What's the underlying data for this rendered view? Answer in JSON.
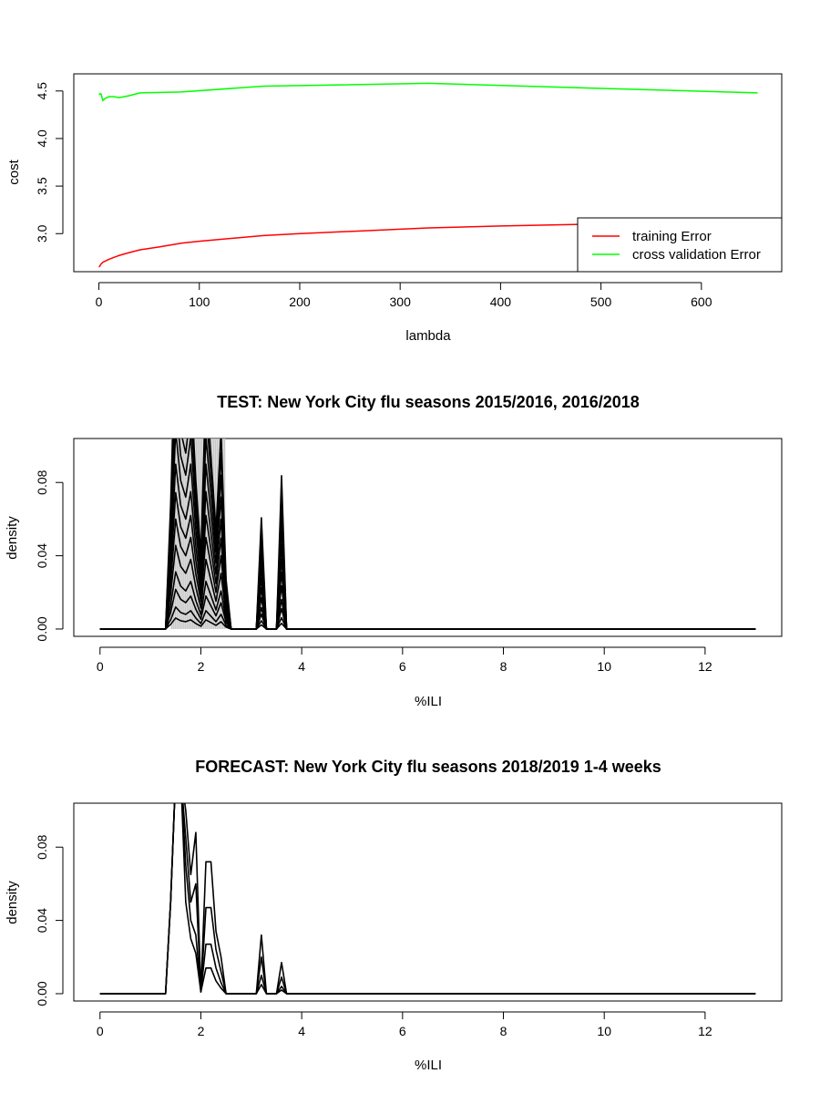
{
  "chart_data": [
    {
      "type": "line",
      "title": "",
      "xlabel": "lambda",
      "ylabel": "cost",
      "xlim": [
        -25,
        680
      ],
      "ylim": [
        2.6,
        4.68
      ],
      "xticks": [
        0,
        100,
        200,
        300,
        400,
        500,
        600
      ],
      "yticks": [
        3.0,
        3.5,
        4.0,
        4.5
      ],
      "ytick_labels": [
        "3.0",
        "3.5",
        "4.0",
        "4.5"
      ],
      "legend_position": "bottom-right",
      "series": [
        {
          "name": "training Error",
          "color": "#ff0000",
          "x": [
            0,
            1,
            2,
            4,
            6,
            10,
            15,
            20,
            30,
            41,
            60,
            82,
            100,
            164,
            200,
            328,
            400,
            490,
            520
          ],
          "y": [
            2.65,
            2.66,
            2.68,
            2.7,
            2.71,
            2.73,
            2.75,
            2.77,
            2.8,
            2.83,
            2.86,
            2.9,
            2.92,
            2.98,
            3.0,
            3.06,
            3.08,
            3.1,
            3.1
          ]
        },
        {
          "name": "cross validation Error",
          "color": "#00ff00",
          "x": [
            0,
            1,
            2,
            4,
            6,
            10,
            15,
            20,
            30,
            41,
            82,
            164,
            328,
            656
          ],
          "y": [
            4.46,
            4.47,
            4.47,
            4.4,
            4.42,
            4.44,
            4.44,
            4.43,
            4.45,
            4.48,
            4.49,
            4.55,
            4.58,
            4.48
          ]
        }
      ]
    },
    {
      "type": "line",
      "title": "TEST: New York City  flu seasons 2015/2016, 2016/2018",
      "xlabel": "%ILI",
      "ylabel": "density",
      "xlim": [
        -0.52,
        13.52
      ],
      "ylim": [
        -0.004,
        0.104
      ],
      "xticks": [
        0,
        2,
        4,
        6,
        8,
        10,
        12
      ],
      "yticks": [
        0,
        0.04,
        0.08
      ],
      "ytick_labels": [
        "0.00",
        "0.04",
        "0.08"
      ],
      "x": [
        0,
        0.1,
        0.2,
        0.3,
        0.4,
        0.5,
        0.6,
        0.7,
        0.8,
        0.9,
        1.0,
        1.1,
        1.2,
        1.3,
        1.4,
        1.5,
        1.6,
        1.7,
        1.8,
        1.9,
        2.0,
        2.1,
        2.2,
        2.3,
        2.4,
        2.5,
        2.6,
        2.7,
        2.8,
        2.9,
        3.0,
        3.1,
        3.2,
        3.3,
        3.4,
        3.5,
        3.6,
        3.7,
        3.8,
        3.9,
        4.0,
        4.1,
        4.2,
        4.3,
        4.4,
        4.5,
        4.6,
        4.7,
        4.8,
        4.9,
        5.0,
        5.5,
        6.0,
        6.5,
        7.0,
        7.5,
        8.0,
        8.5,
        9.0,
        9.5,
        10.0,
        10.5,
        11.0,
        11.5,
        12.0,
        12.5,
        13.0
      ],
      "series_scale": [
        0.05,
        0.1,
        0.18,
        0.26,
        0.38,
        0.5,
        0.62,
        0.75,
        0.9,
        1.05,
        1.2,
        1.35
      ],
      "base_profile": [
        0,
        0,
        0,
        0,
        0,
        0,
        0,
        0,
        0,
        0,
        0,
        0,
        0,
        0,
        0.05,
        0.12,
        0.09,
        0.08,
        0.1,
        0.06,
        0.03,
        0.1,
        0.07,
        0.04,
        0.08,
        0.02,
        0,
        0,
        0,
        0,
        0,
        0,
        0.045,
        0,
        0,
        0,
        0.062,
        0,
        0,
        0,
        0,
        0,
        0,
        0,
        0,
        0,
        0,
        0,
        0,
        0,
        0,
        0,
        0,
        0,
        0,
        0,
        0,
        0,
        0,
        0,
        0,
        0,
        0,
        0,
        0,
        0,
        0
      ]
    },
    {
      "type": "line",
      "title": "FORECAST: New York City flu seasons 2018/2019 1-4 weeks",
      "xlabel": "%ILI",
      "ylabel": "density",
      "xlim": [
        -0.52,
        13.52
      ],
      "ylim": [
        -0.004,
        0.104
      ],
      "xticks": [
        0,
        2,
        4,
        6,
        8,
        10,
        12
      ],
      "yticks": [
        0,
        0.04,
        0.08
      ],
      "ytick_labels": [
        "0.00",
        "0.04",
        "0.08"
      ],
      "x": [
        0,
        0.1,
        0.2,
        0.3,
        0.4,
        0.5,
        0.6,
        0.7,
        0.8,
        0.9,
        1.0,
        1.1,
        1.2,
        1.3,
        1.4,
        1.5,
        1.6,
        1.7,
        1.8,
        1.9,
        2.0,
        2.1,
        2.2,
        2.3,
        2.4,
        2.5,
        2.6,
        2.7,
        2.8,
        2.9,
        3.0,
        3.1,
        3.2,
        3.3,
        3.4,
        3.5,
        3.6,
        3.7,
        3.8,
        3.9,
        4.0,
        4.1,
        4.2,
        4.3,
        4.4,
        4.5,
        4.6,
        4.7,
        4.8,
        4.9,
        5.0,
        5.5,
        6.0,
        6.5,
        7.0,
        7.5,
        8.0,
        8.5,
        9.0,
        9.5,
        10.0,
        10.5,
        11.0,
        11.5,
        12.0,
        12.5,
        13.0
      ],
      "series": [
        {
          "values": [
            0,
            0,
            0,
            0,
            0,
            0,
            0,
            0,
            0,
            0,
            0,
            0,
            0,
            0,
            0.05,
            0.12,
            0.12,
            0.05,
            0.03,
            0.022,
            0.001,
            0.014,
            0.014,
            0.007,
            0.003,
            0,
            0,
            0,
            0,
            0,
            0,
            0,
            0.005,
            0,
            0,
            0,
            0.002,
            0,
            0,
            0,
            0,
            0,
            0,
            0,
            0,
            0,
            0,
            0,
            0,
            0,
            0,
            0,
            0,
            0,
            0,
            0,
            0,
            0,
            0,
            0,
            0,
            0,
            0,
            0,
            0,
            0,
            0
          ]
        },
        {
          "values": [
            0,
            0,
            0,
            0,
            0,
            0,
            0,
            0,
            0,
            0,
            0,
            0,
            0,
            0,
            0.05,
            0.12,
            0.12,
            0.07,
            0.04,
            0.032,
            0.001,
            0.027,
            0.027,
            0.014,
            0.006,
            0,
            0,
            0,
            0,
            0,
            0,
            0,
            0.01,
            0,
            0,
            0,
            0.004,
            0,
            0,
            0,
            0,
            0,
            0,
            0,
            0,
            0,
            0,
            0,
            0,
            0,
            0,
            0,
            0,
            0,
            0,
            0,
            0,
            0,
            0,
            0,
            0,
            0,
            0,
            0,
            0,
            0,
            0
          ]
        },
        {
          "values": [
            0,
            0,
            0,
            0,
            0,
            0,
            0,
            0,
            0,
            0,
            0,
            0,
            0,
            0,
            0.05,
            0.12,
            0.12,
            0.085,
            0.05,
            0.06,
            0.001,
            0.047,
            0.047,
            0.024,
            0.012,
            0,
            0,
            0,
            0,
            0,
            0,
            0,
            0.02,
            0,
            0,
            0,
            0.009,
            0,
            0,
            0,
            0,
            0,
            0,
            0,
            0,
            0,
            0,
            0,
            0,
            0,
            0,
            0,
            0,
            0,
            0,
            0,
            0,
            0,
            0,
            0,
            0,
            0,
            0,
            0,
            0,
            0,
            0
          ]
        },
        {
          "values": [
            0,
            0,
            0,
            0,
            0,
            0,
            0,
            0,
            0,
            0,
            0,
            0,
            0,
            0,
            0.05,
            0.12,
            0.12,
            0.1,
            0.065,
            0.088,
            0.001,
            0.072,
            0.072,
            0.034,
            0.02,
            0,
            0,
            0,
            0,
            0,
            0,
            0,
            0.032,
            0,
            0,
            0,
            0.017,
            0,
            0,
            0,
            0,
            0,
            0,
            0,
            0,
            0,
            0,
            0,
            0,
            0,
            0,
            0,
            0,
            0,
            0,
            0,
            0,
            0,
            0,
            0,
            0,
            0,
            0,
            0,
            0,
            0,
            0
          ]
        }
      ]
    }
  ]
}
